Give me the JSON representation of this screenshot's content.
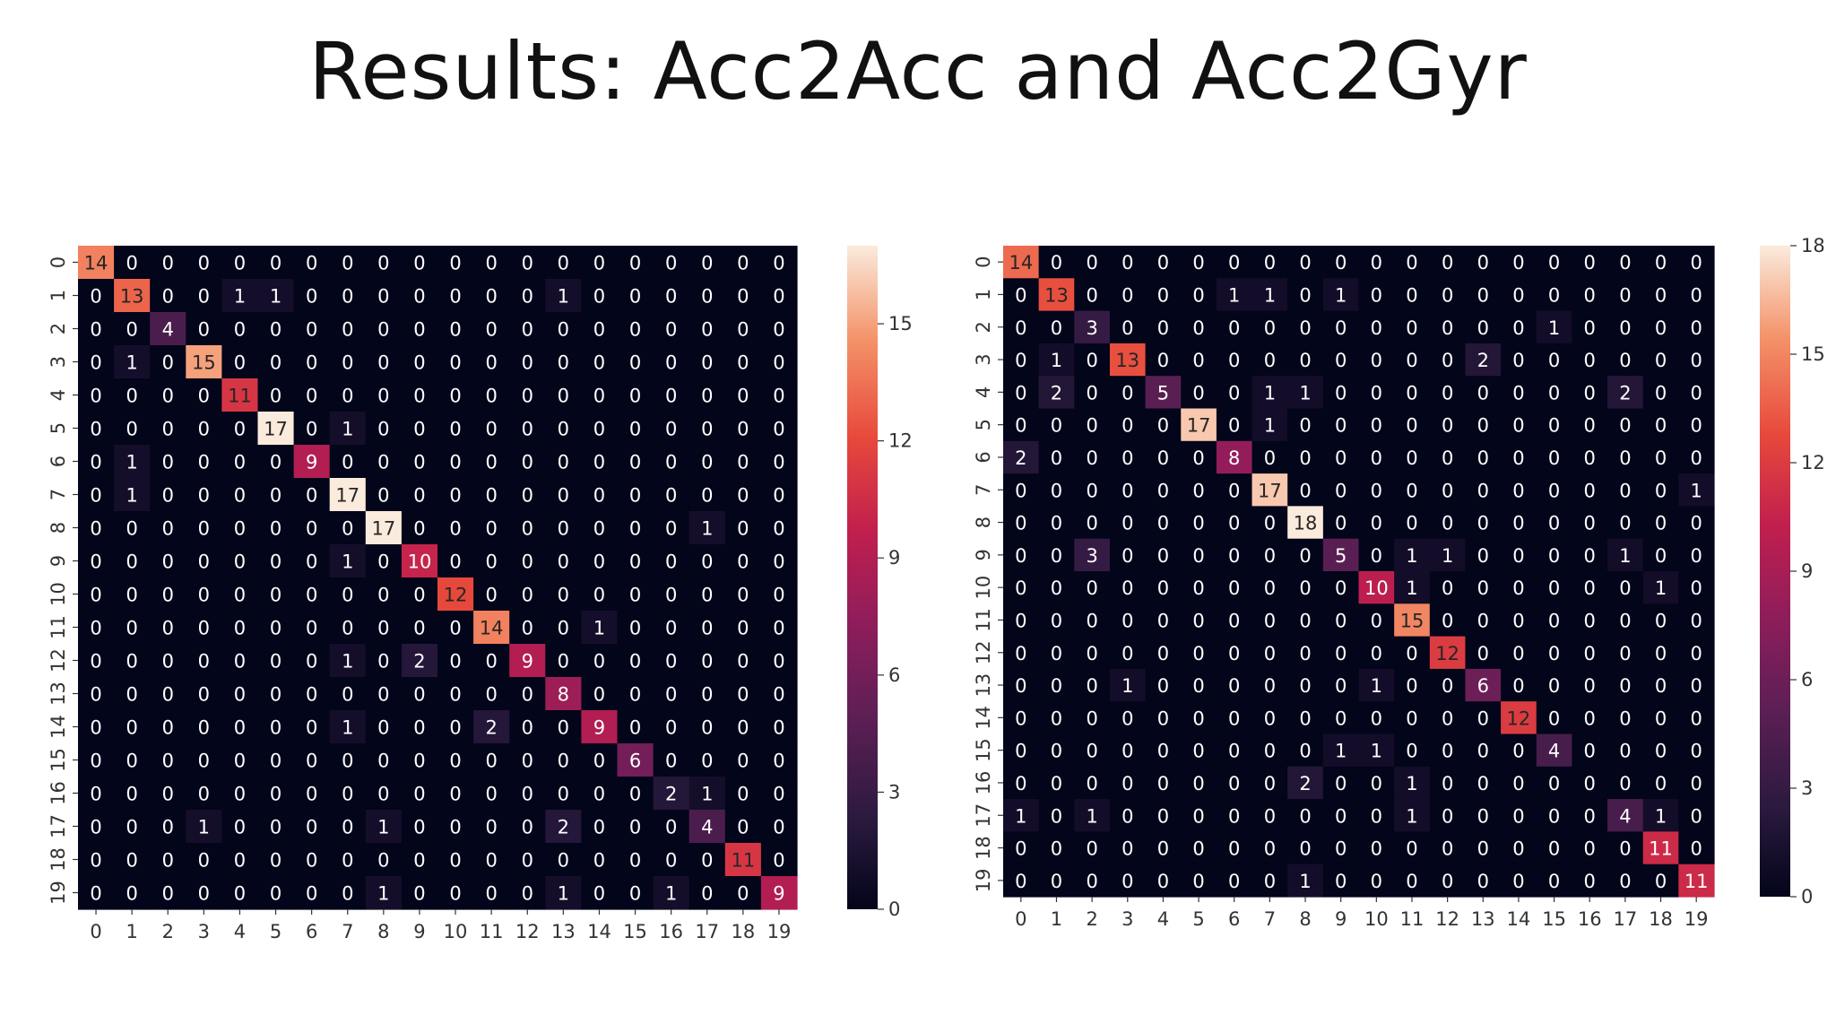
{
  "slide": {
    "title": "Results: Acc2Acc and Acc2Gyr"
  },
  "colors": {
    "colormap": "rocket",
    "low": "#03051a",
    "high": "#faebdd",
    "background": "#ffffff"
  },
  "chart_data": [
    {
      "type": "heatmap",
      "x_labels": [
        "0",
        "1",
        "2",
        "3",
        "4",
        "5",
        "6",
        "7",
        "8",
        "9",
        "10",
        "11",
        "12",
        "13",
        "14",
        "15",
        "16",
        "17",
        "18",
        "19"
      ],
      "y_labels": [
        "0",
        "1",
        "2",
        "3",
        "4",
        "5",
        "6",
        "7",
        "8",
        "9",
        "10",
        "11",
        "12",
        "13",
        "14",
        "15",
        "16",
        "17",
        "18",
        "19"
      ],
      "vmin": 0,
      "vmax": 17,
      "colorbar_ticks": [
        0,
        3,
        6,
        9,
        12,
        15
      ],
      "values": [
        [
          14,
          0,
          0,
          0,
          0,
          0,
          0,
          0,
          0,
          0,
          0,
          0,
          0,
          0,
          0,
          0,
          0,
          0,
          0,
          0
        ],
        [
          0,
          13,
          0,
          0,
          1,
          1,
          0,
          0,
          0,
          0,
          0,
          0,
          0,
          1,
          0,
          0,
          0,
          0,
          0,
          0
        ],
        [
          0,
          0,
          4,
          0,
          0,
          0,
          0,
          0,
          0,
          0,
          0,
          0,
          0,
          0,
          0,
          0,
          0,
          0,
          0,
          0
        ],
        [
          0,
          1,
          0,
          15,
          0,
          0,
          0,
          0,
          0,
          0,
          0,
          0,
          0,
          0,
          0,
          0,
          0,
          0,
          0,
          0
        ],
        [
          0,
          0,
          0,
          0,
          11,
          0,
          0,
          0,
          0,
          0,
          0,
          0,
          0,
          0,
          0,
          0,
          0,
          0,
          0,
          0
        ],
        [
          0,
          0,
          0,
          0,
          0,
          17,
          0,
          1,
          0,
          0,
          0,
          0,
          0,
          0,
          0,
          0,
          0,
          0,
          0,
          0
        ],
        [
          0,
          1,
          0,
          0,
          0,
          0,
          9,
          0,
          0,
          0,
          0,
          0,
          0,
          0,
          0,
          0,
          0,
          0,
          0,
          0
        ],
        [
          0,
          1,
          0,
          0,
          0,
          0,
          0,
          17,
          0,
          0,
          0,
          0,
          0,
          0,
          0,
          0,
          0,
          0,
          0,
          0
        ],
        [
          0,
          0,
          0,
          0,
          0,
          0,
          0,
          0,
          17,
          0,
          0,
          0,
          0,
          0,
          0,
          0,
          0,
          1,
          0,
          0
        ],
        [
          0,
          0,
          0,
          0,
          0,
          0,
          0,
          1,
          0,
          10,
          0,
          0,
          0,
          0,
          0,
          0,
          0,
          0,
          0,
          0
        ],
        [
          0,
          0,
          0,
          0,
          0,
          0,
          0,
          0,
          0,
          0,
          12,
          0,
          0,
          0,
          0,
          0,
          0,
          0,
          0,
          0
        ],
        [
          0,
          0,
          0,
          0,
          0,
          0,
          0,
          0,
          0,
          0,
          0,
          14,
          0,
          0,
          1,
          0,
          0,
          0,
          0,
          0
        ],
        [
          0,
          0,
          0,
          0,
          0,
          0,
          0,
          1,
          0,
          2,
          0,
          0,
          9,
          0,
          0,
          0,
          0,
          0,
          0,
          0
        ],
        [
          0,
          0,
          0,
          0,
          0,
          0,
          0,
          0,
          0,
          0,
          0,
          0,
          0,
          8,
          0,
          0,
          0,
          0,
          0,
          0
        ],
        [
          0,
          0,
          0,
          0,
          0,
          0,
          0,
          1,
          0,
          0,
          0,
          2,
          0,
          0,
          9,
          0,
          0,
          0,
          0,
          0
        ],
        [
          0,
          0,
          0,
          0,
          0,
          0,
          0,
          0,
          0,
          0,
          0,
          0,
          0,
          0,
          0,
          6,
          0,
          0,
          0,
          0
        ],
        [
          0,
          0,
          0,
          0,
          0,
          0,
          0,
          0,
          0,
          0,
          0,
          0,
          0,
          0,
          0,
          0,
          2,
          1,
          0,
          0
        ],
        [
          0,
          0,
          0,
          1,
          0,
          0,
          0,
          0,
          1,
          0,
          0,
          0,
          0,
          2,
          0,
          0,
          0,
          4,
          0,
          0
        ],
        [
          0,
          0,
          0,
          0,
          0,
          0,
          0,
          0,
          0,
          0,
          0,
          0,
          0,
          0,
          0,
          0,
          0,
          0,
          11,
          0
        ],
        [
          0,
          0,
          0,
          0,
          0,
          0,
          0,
          0,
          1,
          0,
          0,
          0,
          0,
          1,
          0,
          0,
          1,
          0,
          0,
          9
        ]
      ]
    },
    {
      "type": "heatmap",
      "x_labels": [
        "0",
        "1",
        "2",
        "3",
        "4",
        "5",
        "6",
        "7",
        "8",
        "9",
        "10",
        "11",
        "12",
        "13",
        "14",
        "15",
        "16",
        "17",
        "18",
        "19"
      ],
      "y_labels": [
        "0",
        "1",
        "2",
        "3",
        "4",
        "5",
        "6",
        "7",
        "8",
        "9",
        "10",
        "11",
        "12",
        "13",
        "14",
        "15",
        "16",
        "17",
        "18",
        "19"
      ],
      "vmin": 0,
      "vmax": 18,
      "colorbar_ticks": [
        0,
        3,
        6,
        9,
        12,
        15,
        18
      ],
      "values": [
        [
          14,
          0,
          0,
          0,
          0,
          0,
          0,
          0,
          0,
          0,
          0,
          0,
          0,
          0,
          0,
          0,
          0,
          0,
          0,
          0
        ],
        [
          0,
          13,
          0,
          0,
          0,
          0,
          1,
          1,
          0,
          1,
          0,
          0,
          0,
          0,
          0,
          0,
          0,
          0,
          0,
          0
        ],
        [
          0,
          0,
          3,
          0,
          0,
          0,
          0,
          0,
          0,
          0,
          0,
          0,
          0,
          0,
          0,
          1,
          0,
          0,
          0,
          0
        ],
        [
          0,
          1,
          0,
          13,
          0,
          0,
          0,
          0,
          0,
          0,
          0,
          0,
          0,
          2,
          0,
          0,
          0,
          0,
          0,
          0
        ],
        [
          0,
          2,
          0,
          0,
          5,
          0,
          0,
          1,
          1,
          0,
          0,
          0,
          0,
          0,
          0,
          0,
          0,
          2,
          0,
          0
        ],
        [
          0,
          0,
          0,
          0,
          0,
          17,
          0,
          1,
          0,
          0,
          0,
          0,
          0,
          0,
          0,
          0,
          0,
          0,
          0,
          0
        ],
        [
          2,
          0,
          0,
          0,
          0,
          0,
          8,
          0,
          0,
          0,
          0,
          0,
          0,
          0,
          0,
          0,
          0,
          0,
          0,
          0
        ],
        [
          0,
          0,
          0,
          0,
          0,
          0,
          0,
          17,
          0,
          0,
          0,
          0,
          0,
          0,
          0,
          0,
          0,
          0,
          0,
          1
        ],
        [
          0,
          0,
          0,
          0,
          0,
          0,
          0,
          0,
          18,
          0,
          0,
          0,
          0,
          0,
          0,
          0,
          0,
          0,
          0,
          0
        ],
        [
          0,
          0,
          3,
          0,
          0,
          0,
          0,
          0,
          0,
          5,
          0,
          1,
          1,
          0,
          0,
          0,
          0,
          1,
          0,
          0
        ],
        [
          0,
          0,
          0,
          0,
          0,
          0,
          0,
          0,
          0,
          0,
          10,
          1,
          0,
          0,
          0,
          0,
          0,
          0,
          1,
          0
        ],
        [
          0,
          0,
          0,
          0,
          0,
          0,
          0,
          0,
          0,
          0,
          0,
          15,
          0,
          0,
          0,
          0,
          0,
          0,
          0,
          0
        ],
        [
          0,
          0,
          0,
          0,
          0,
          0,
          0,
          0,
          0,
          0,
          0,
          0,
          12,
          0,
          0,
          0,
          0,
          0,
          0,
          0
        ],
        [
          0,
          0,
          0,
          1,
          0,
          0,
          0,
          0,
          0,
          0,
          1,
          0,
          0,
          6,
          0,
          0,
          0,
          0,
          0,
          0
        ],
        [
          0,
          0,
          0,
          0,
          0,
          0,
          0,
          0,
          0,
          0,
          0,
          0,
          0,
          0,
          12,
          0,
          0,
          0,
          0,
          0
        ],
        [
          0,
          0,
          0,
          0,
          0,
          0,
          0,
          0,
          0,
          1,
          1,
          0,
          0,
          0,
          0,
          4,
          0,
          0,
          0,
          0
        ],
        [
          0,
          0,
          0,
          0,
          0,
          0,
          0,
          0,
          2,
          0,
          0,
          1,
          0,
          0,
          0,
          0,
          0,
          0,
          0,
          0
        ],
        [
          1,
          0,
          1,
          0,
          0,
          0,
          0,
          0,
          0,
          0,
          0,
          1,
          0,
          0,
          0,
          0,
          0,
          4,
          1,
          0
        ],
        [
          0,
          0,
          0,
          0,
          0,
          0,
          0,
          0,
          0,
          0,
          0,
          0,
          0,
          0,
          0,
          0,
          0,
          0,
          11,
          0
        ],
        [
          0,
          0,
          0,
          0,
          0,
          0,
          0,
          0,
          1,
          0,
          0,
          0,
          0,
          0,
          0,
          0,
          0,
          0,
          0,
          11
        ]
      ]
    }
  ]
}
